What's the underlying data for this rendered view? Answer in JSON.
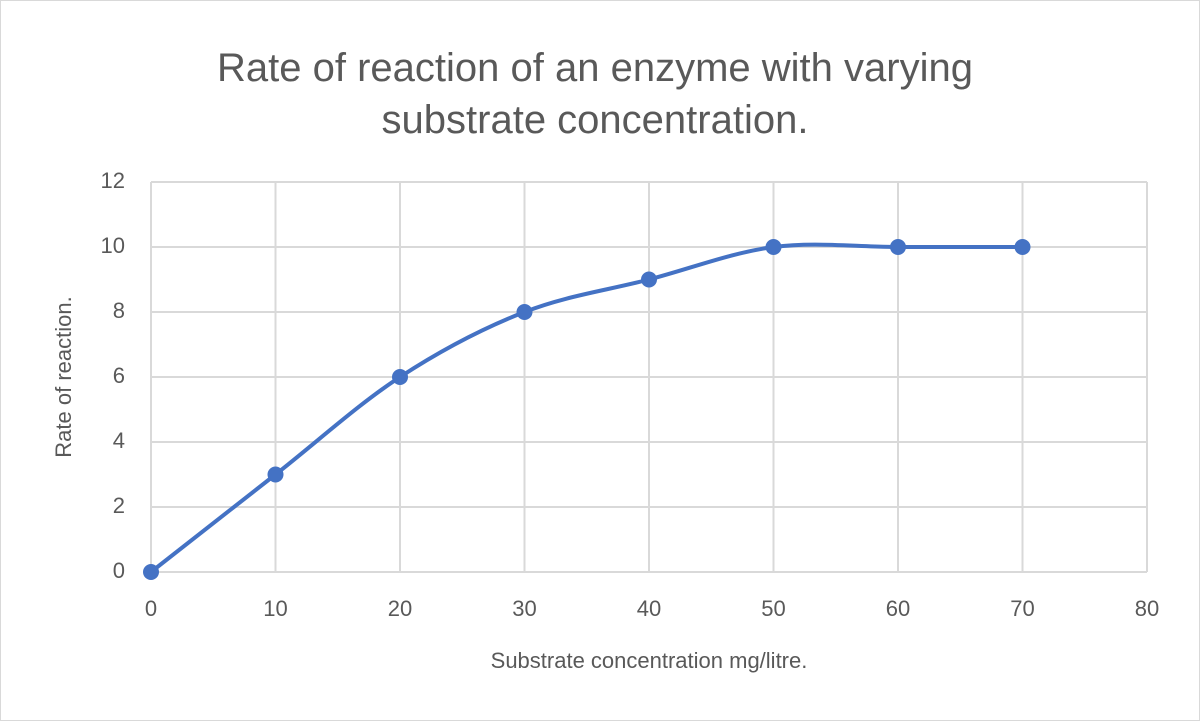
{
  "chart_data": {
    "type": "line",
    "smooth": true,
    "title": "Rate of reaction of an enzyme with varying substrate concentration.",
    "x_label": "Substrate concentration mg/litre.",
    "y_label": "Rate of reaction.",
    "x": [
      0,
      10,
      20,
      30,
      40,
      50,
      60,
      70
    ],
    "series": [
      {
        "color": "#4472c4",
        "values": [
          0,
          3,
          6,
          8,
          9,
          10,
          10,
          10
        ]
      }
    ],
    "xlim": [
      0,
      80
    ],
    "xticks": [
      0,
      10,
      20,
      30,
      40,
      50,
      60,
      70,
      80
    ],
    "ylim": [
      0,
      12
    ],
    "yticks": [
      0,
      2,
      4,
      6,
      8,
      10,
      12
    ],
    "grid": true
  }
}
